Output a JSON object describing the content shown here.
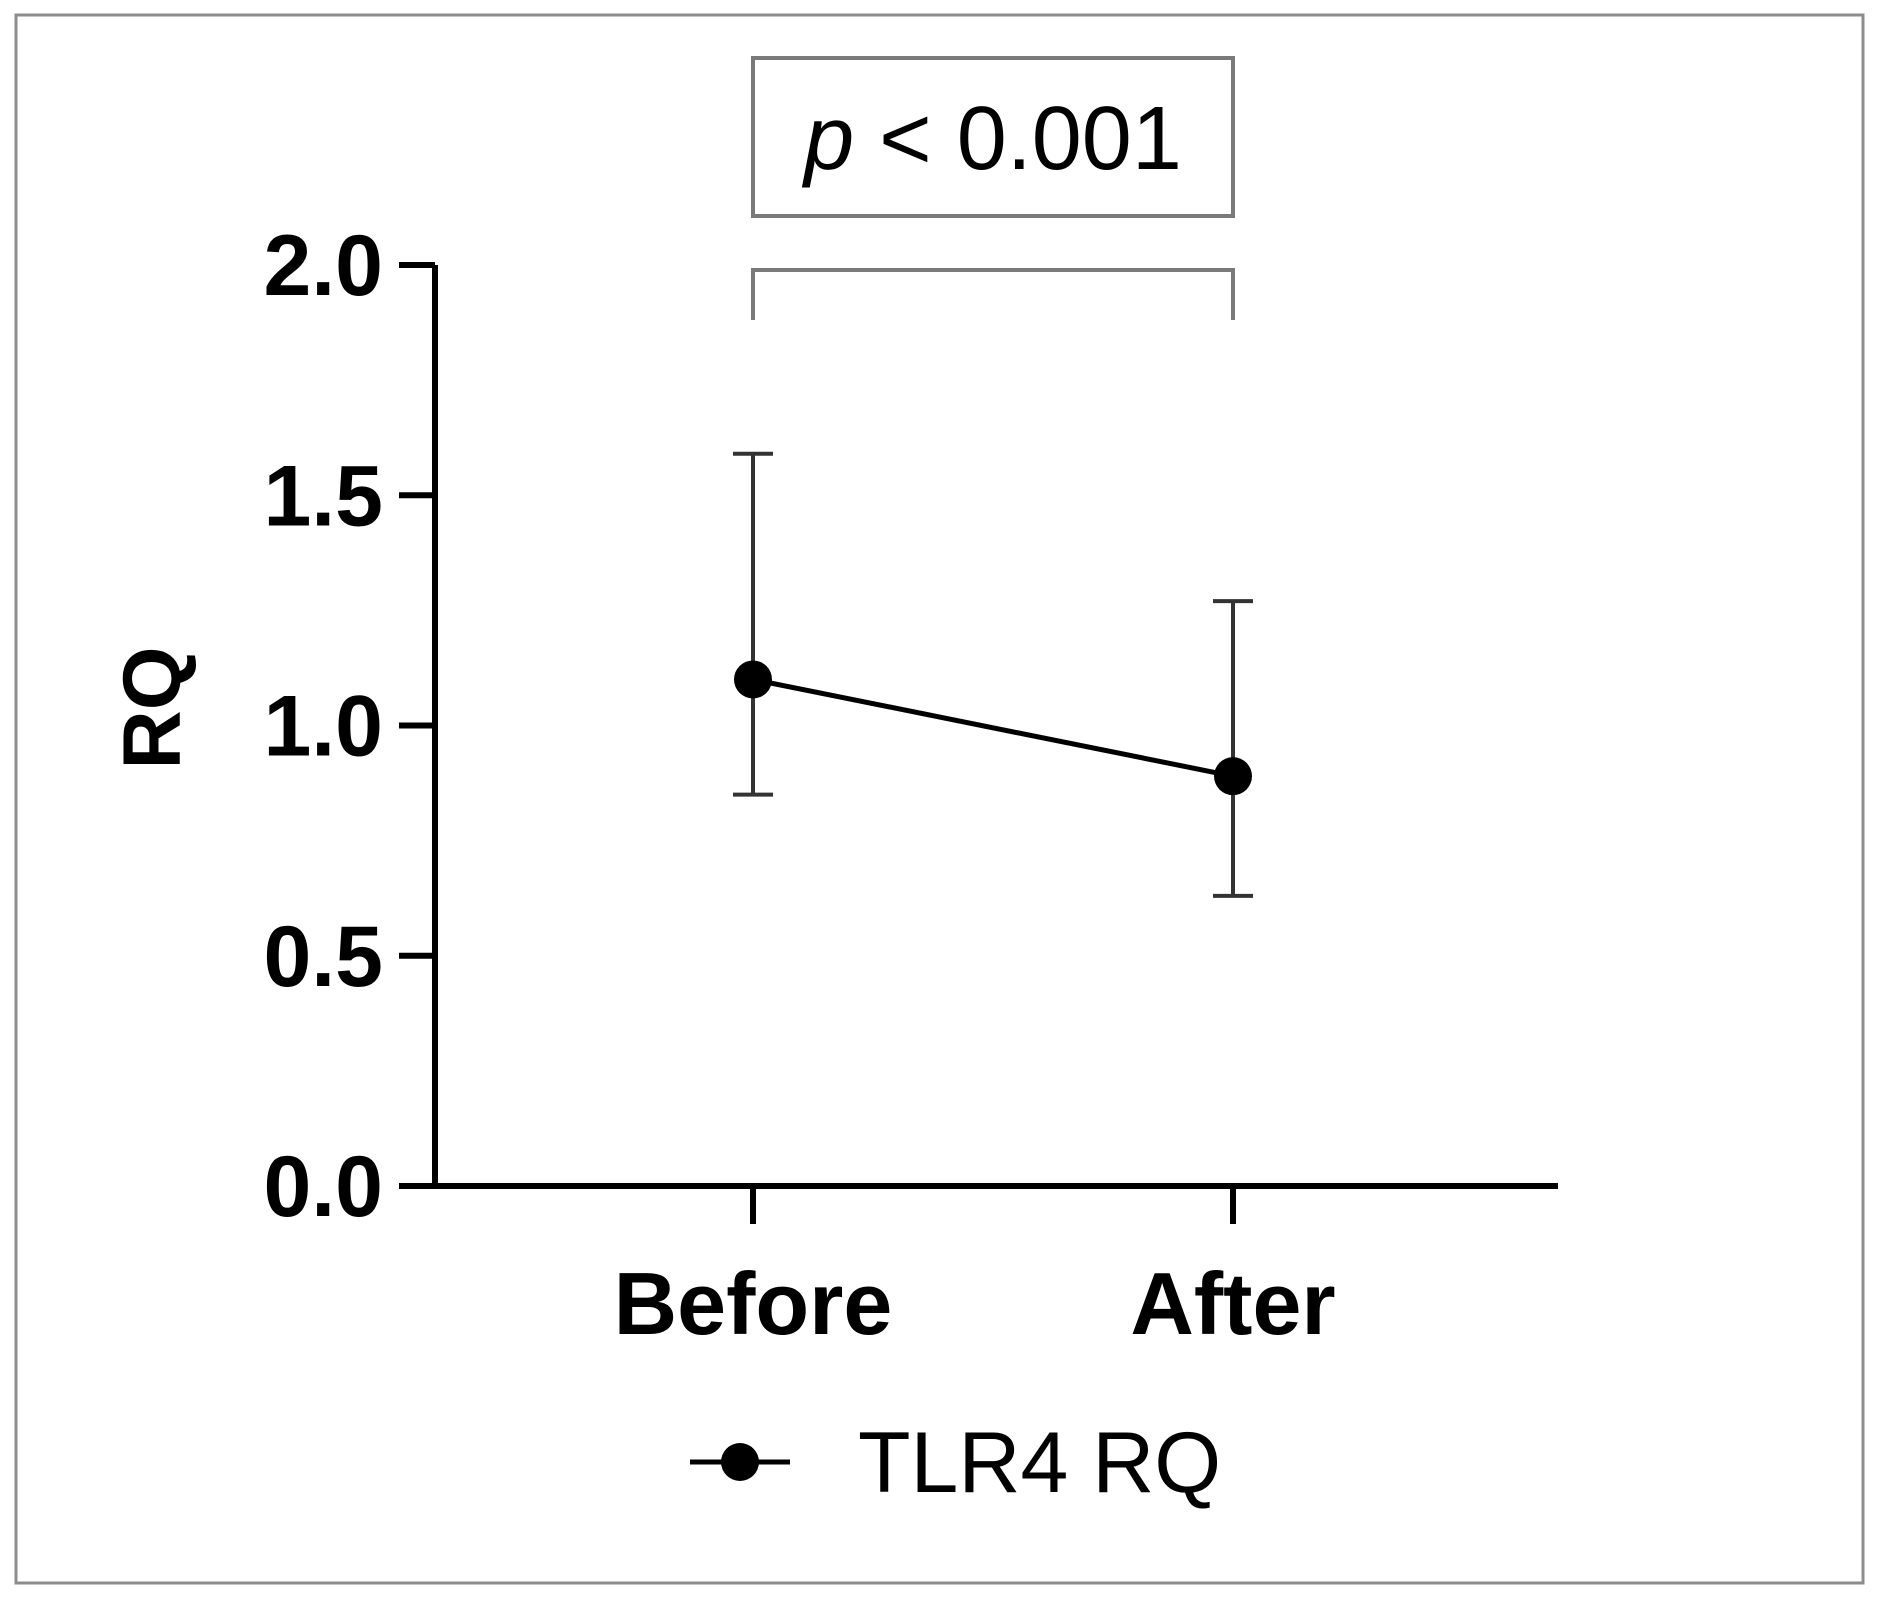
{
  "chart_data": {
    "type": "line",
    "categories": [
      "Before",
      "After"
    ],
    "series": [
      {
        "name": "TLR4 RQ",
        "values": [
          1.1,
          0.89
        ],
        "error_upper": [
          1.59,
          1.27
        ],
        "error_lower": [
          0.85,
          0.63
        ],
        "color": "#000000",
        "marker": "circle"
      }
    ],
    "xlabel": "",
    "ylabel": "RQ",
    "ylim": [
      0.0,
      2.0
    ],
    "yticks": [
      0.0,
      0.5,
      1.0,
      1.5,
      2.0
    ],
    "ytick_labels": [
      "0.0",
      "0.5",
      "1.0",
      "1.5",
      "2.0"
    ],
    "grid": false,
    "legend": {
      "position": "bottom-center",
      "entries": [
        "TLR4 RQ"
      ]
    },
    "annotation": {
      "type": "significance-bracket",
      "from": "Before",
      "to": "After",
      "p_italic": "p",
      "p_rest": " < 0.001"
    },
    "frame_color": "#8c8c8c",
    "bracket_color": "#7a7a7a"
  }
}
